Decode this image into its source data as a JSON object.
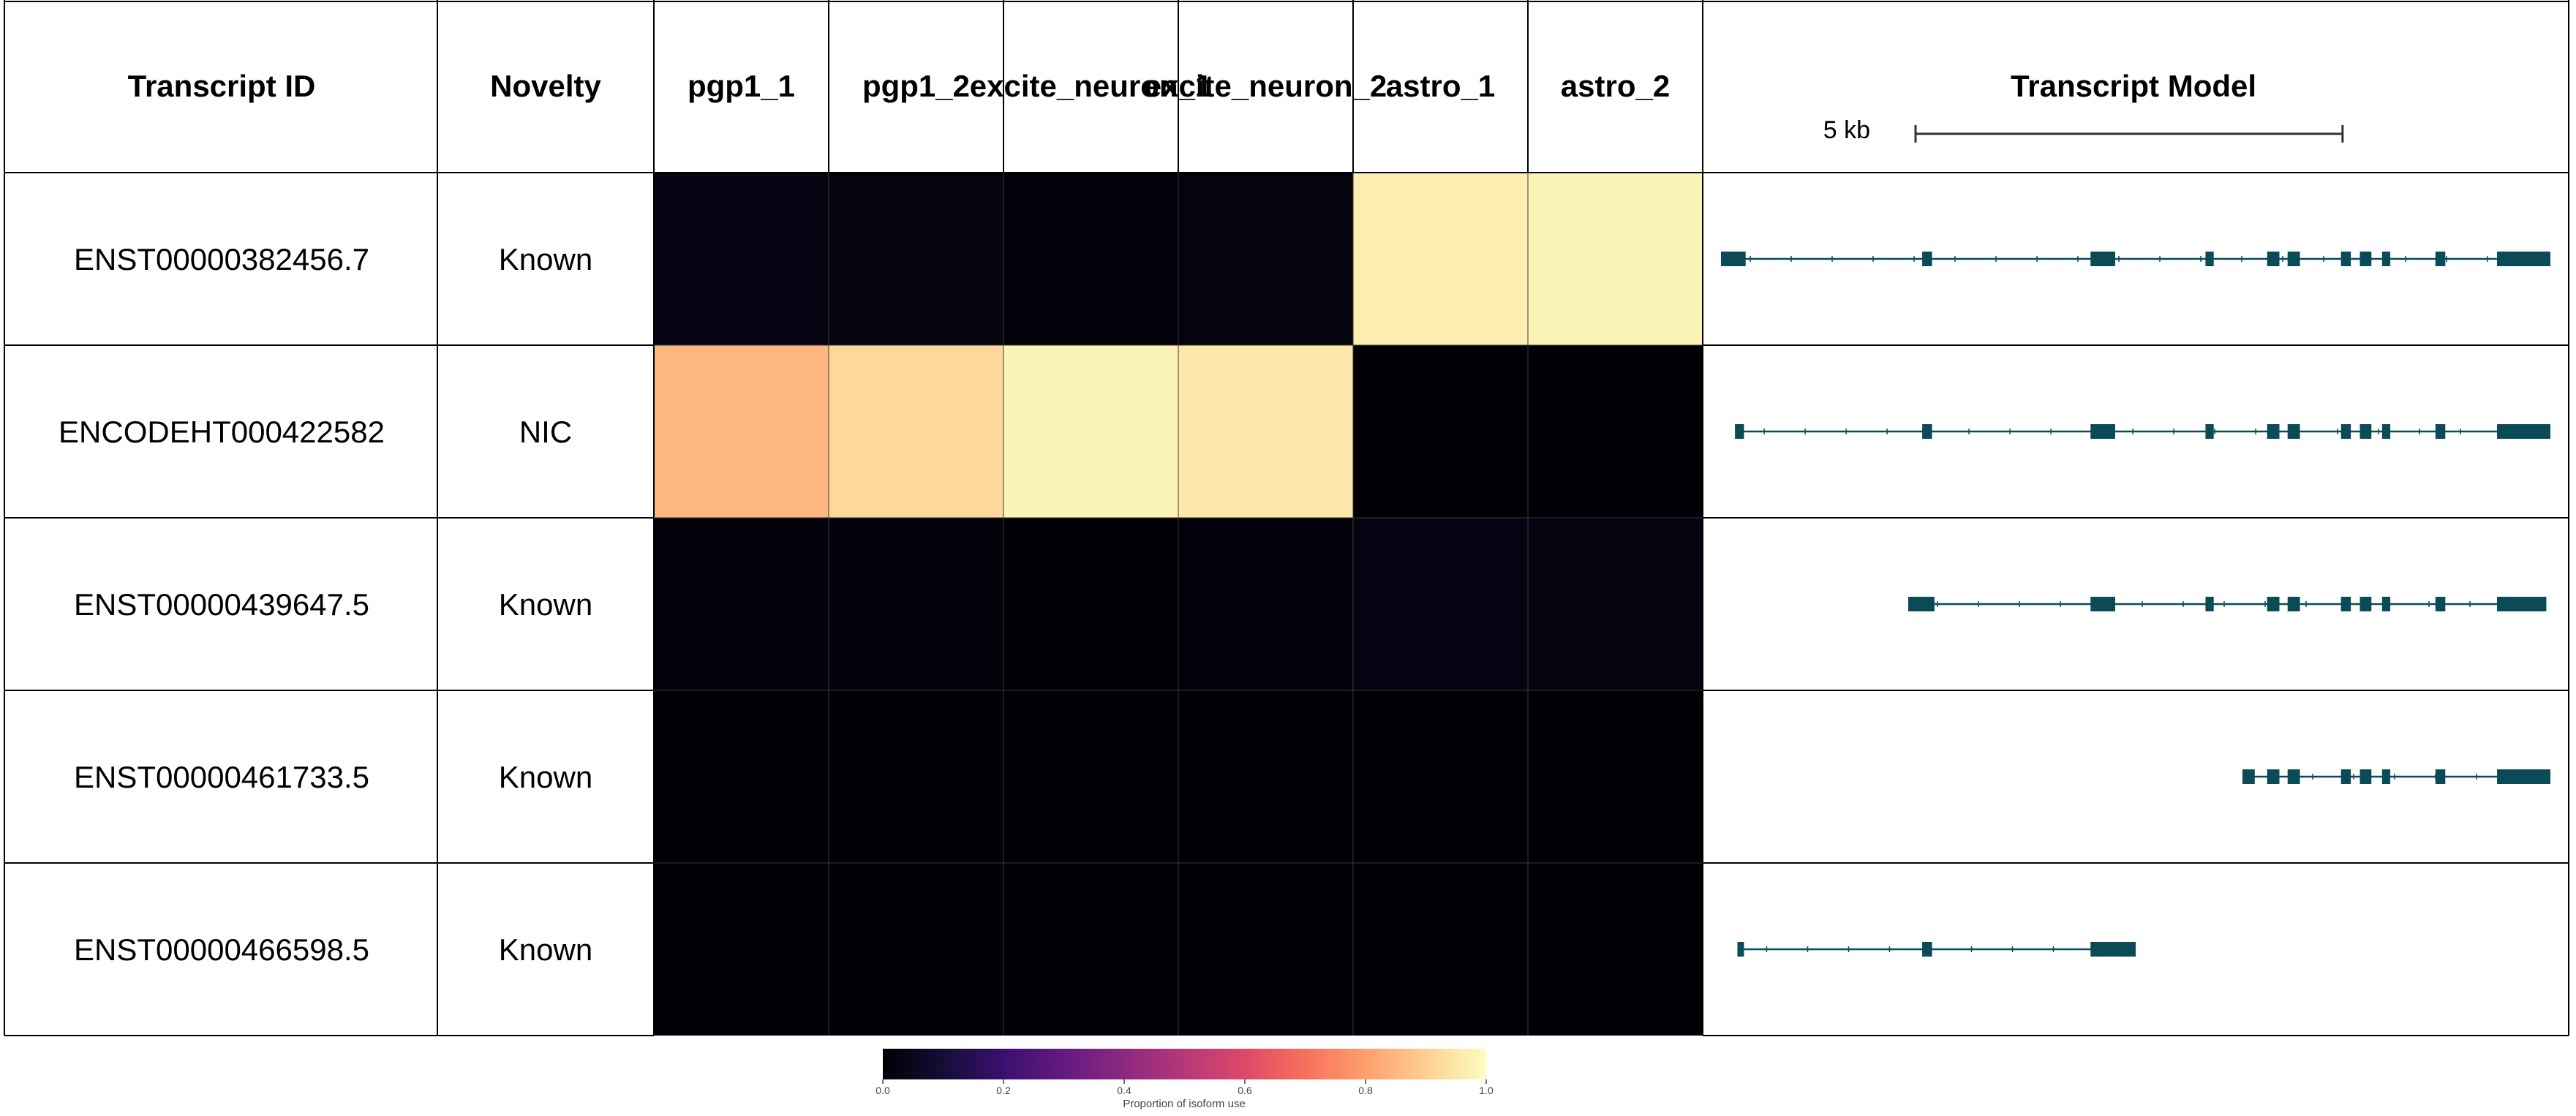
{
  "chart_data": {
    "type": "heatmap",
    "headers": {
      "transcript_id": "Transcript ID",
      "novelty": "Novelty",
      "transcript_model": "Transcript Model"
    },
    "samples": [
      "pgp1_1",
      "pgp1_2",
      "excite_neuron_1",
      "excite_neuron_2",
      "astro_1",
      "astro_2"
    ],
    "rows": [
      {
        "id": "ENST00000382456.7",
        "novelty": "Known",
        "values": [
          0.03,
          0.02,
          0.01,
          0.02,
          0.97,
          0.98
        ],
        "exons_kb": [
          [
            0.0,
            0.3
          ],
          [
            2.45,
            2.57
          ],
          [
            4.5,
            4.8
          ],
          [
            5.9,
            6.0
          ],
          [
            6.65,
            6.8
          ],
          [
            6.9,
            7.05
          ],
          [
            7.55,
            7.67
          ],
          [
            7.78,
            7.92
          ],
          [
            8.05,
            8.15
          ],
          [
            8.7,
            8.82
          ],
          [
            9.45,
            10.1
          ]
        ]
      },
      {
        "id": "ENCODEHT000422582",
        "novelty": "NIC",
        "values": [
          0.85,
          0.92,
          0.98,
          0.95,
          0.0,
          0.0
        ],
        "exons_kb": [
          [
            0.17,
            0.28
          ],
          [
            2.45,
            2.57
          ],
          [
            4.5,
            4.8
          ],
          [
            5.9,
            6.0
          ],
          [
            6.65,
            6.8
          ],
          [
            6.9,
            7.05
          ],
          [
            7.55,
            7.67
          ],
          [
            7.78,
            7.92
          ],
          [
            8.05,
            8.15
          ],
          [
            8.7,
            8.82
          ],
          [
            9.45,
            10.1
          ]
        ]
      },
      {
        "id": "ENST00000439647.5",
        "novelty": "Known",
        "values": [
          0.01,
          0.01,
          0.0,
          0.01,
          0.03,
          0.02
        ],
        "exons_kb": [
          [
            2.28,
            2.6
          ],
          [
            4.5,
            4.8
          ],
          [
            5.9,
            6.0
          ],
          [
            6.65,
            6.8
          ],
          [
            6.9,
            7.05
          ],
          [
            7.55,
            7.67
          ],
          [
            7.78,
            7.92
          ],
          [
            8.05,
            8.15
          ],
          [
            8.7,
            8.82
          ],
          [
            9.45,
            10.05
          ]
        ]
      },
      {
        "id": "ENST00000461733.5",
        "novelty": "Known",
        "values": [
          0.0,
          0.0,
          0.0,
          0.0,
          0.0,
          0.0
        ],
        "exons_kb": [
          [
            6.35,
            6.5
          ],
          [
            6.65,
            6.8
          ],
          [
            6.9,
            7.05
          ],
          [
            7.55,
            7.67
          ],
          [
            7.78,
            7.92
          ],
          [
            8.05,
            8.15
          ],
          [
            8.7,
            8.82
          ],
          [
            9.45,
            10.1
          ]
        ]
      },
      {
        "id": "ENST00000466598.5",
        "novelty": "Known",
        "values": [
          0.0,
          0.0,
          0.0,
          0.0,
          0.0,
          0.0
        ],
        "exons_kb": [
          [
            0.2,
            0.28
          ],
          [
            2.45,
            2.57
          ],
          [
            4.5,
            5.05
          ]
        ]
      }
    ],
    "scale_bar": {
      "label": "5 kb",
      "length_kb": 5.2
    },
    "model_range_kb": [
      0,
      10.1
    ],
    "model_color": "#0b4a57",
    "colorbar": {
      "label": "Proportion of isoform use",
      "ticks": [
        "0.0",
        "0.2",
        "0.4",
        "0.6",
        "0.8",
        "1.0"
      ],
      "range": [
        0,
        1
      ],
      "colormap": "magma"
    }
  }
}
